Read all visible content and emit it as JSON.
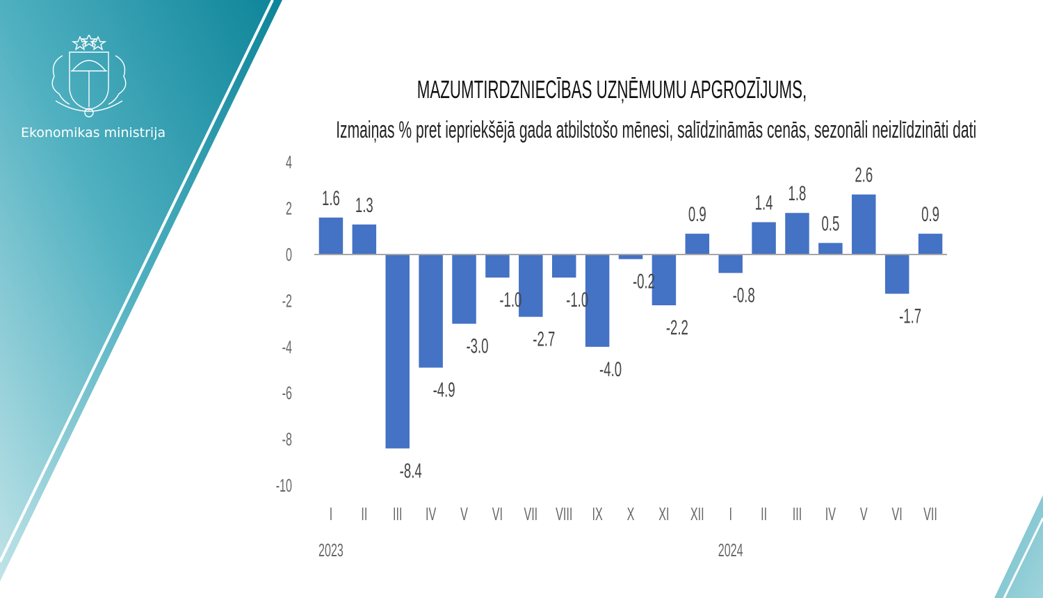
{
  "brand": {
    "ministry_name": "Ekonomikas ministrija",
    "logo_icon": "latvia-coat-of-arms-icon",
    "panel_color_top": "#0f8ba0",
    "panel_color_bottom": "#b8e0e6"
  },
  "header": {
    "title": "MAZUMTIRDZNIECĪBAS UZŅĒMUMU APGROZĪJUMS,",
    "subtitle": "Izmaiņas % pret iepriekšējā gada atbilstošo mēnesi, salīdzināmās cenās, sezonāli neizlīdzināti dati"
  },
  "chart_data": {
    "type": "bar",
    "title": "MAZUMTIRDZNIECĪBAS UZŅĒMUMU APGROZĪJUMS,",
    "subtitle": "Izmaiņas % pret iepriekšējā gada atbilstošo mēnesi, salīdzināmās cenās, sezonāli neizlīdzināti dati",
    "xlabel": "",
    "ylabel": "",
    "categories": [
      "I",
      "II",
      "III",
      "IV",
      "V",
      "VI",
      "VII",
      "VIII",
      "IX",
      "X",
      "XI",
      "XII",
      "I",
      "II",
      "III",
      "IV",
      "V",
      "VI",
      "VII"
    ],
    "year_labels": [
      {
        "label": "2023",
        "index": 0
      },
      {
        "label": "2024",
        "index": 12
      }
    ],
    "values": [
      1.6,
      1.3,
      -8.4,
      -4.9,
      -3.0,
      -1.0,
      -2.7,
      -1.0,
      -4.0,
      -0.2,
      -2.2,
      0.9,
      -0.8,
      1.4,
      1.8,
      0.5,
      2.6,
      -1.7,
      0.9
    ],
    "data_labels": [
      "1.6",
      "1.3",
      "-8.4",
      "-4.9",
      "-3.0",
      "-1.0",
      "-2.7",
      "-1.0",
      "-4.0",
      "-0.2",
      "-2.2",
      "0.9",
      "-0.8",
      "1.4",
      "1.8",
      "0.5",
      "2.6",
      "-1.7",
      "0.9"
    ],
    "yticks": [
      4,
      2,
      0,
      -2,
      -4,
      -6,
      -8,
      -10
    ],
    "ylim": [
      -10,
      4
    ],
    "grid": false,
    "legend": "none",
    "bar_color": "#4472c4"
  }
}
